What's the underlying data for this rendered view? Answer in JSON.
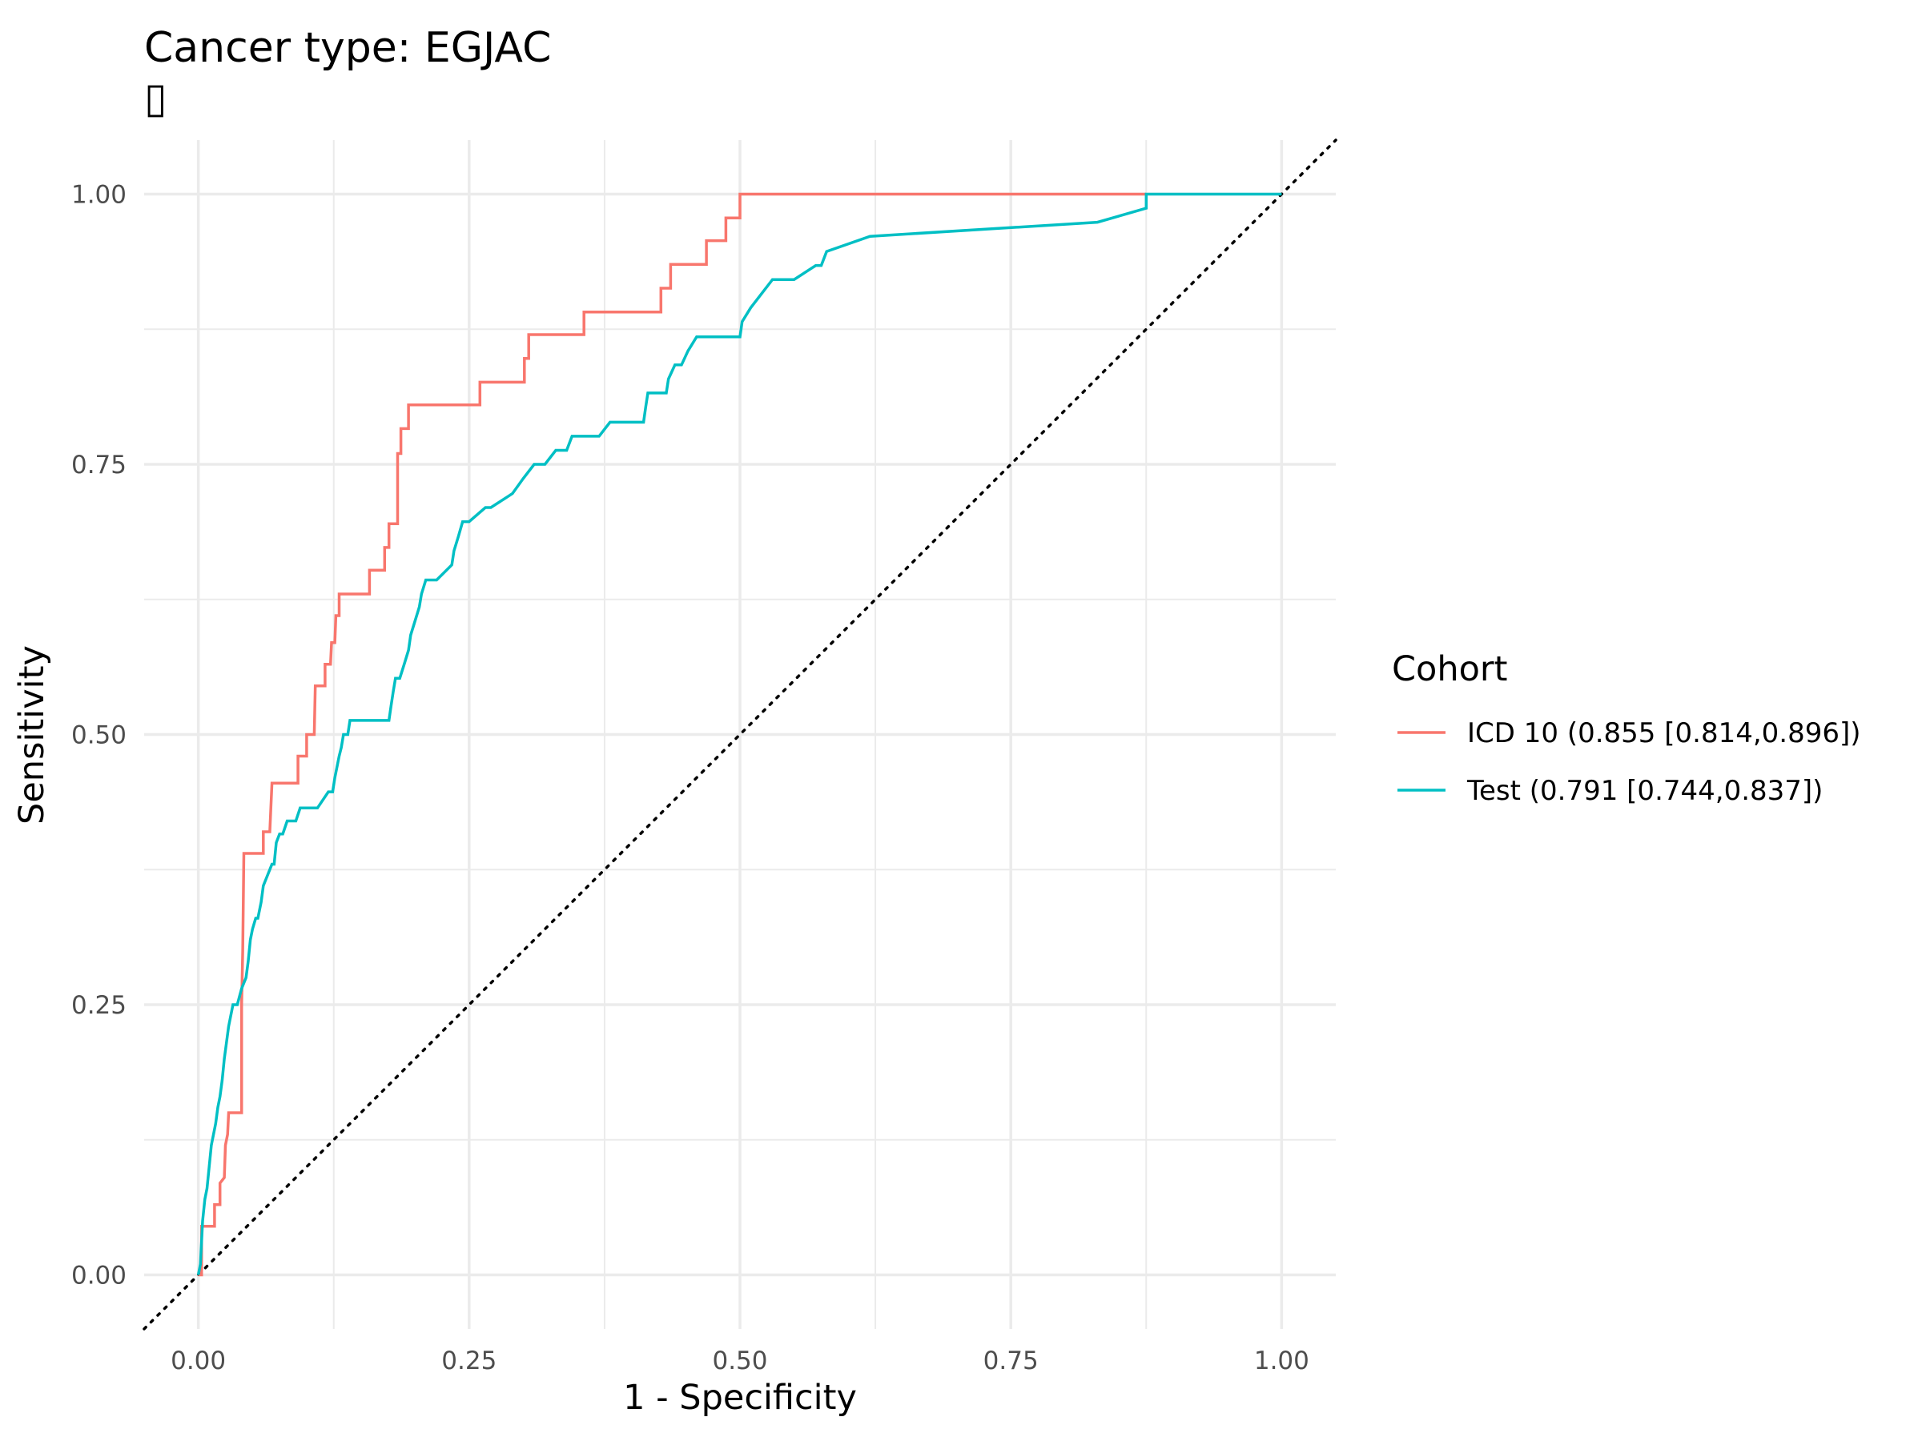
{
  "chart_data": {
    "type": "line",
    "title": "Cancer type: EGJAC",
    "subtitle": "▯",
    "xlabel": "1 - Specificity",
    "ylabel": "Sensitivity",
    "xlim": [
      -0.05,
      1.05
    ],
    "ylim": [
      -0.05,
      1.05
    ],
    "xticks": [
      0,
      0.25,
      0.5,
      0.75,
      1
    ],
    "yticks": [
      0,
      0.25,
      0.5,
      0.75,
      1
    ],
    "xtick_labels": [
      "0.00",
      "0.25",
      "0.50",
      "0.75",
      "1.00"
    ],
    "ytick_labels": [
      "0.00",
      "0.25",
      "0.50",
      "0.75",
      "1.00"
    ],
    "grid": true,
    "legend": {
      "title": "Cohort",
      "placement": "right"
    },
    "reference_line": {
      "style": "dotted",
      "from": [
        0,
        0
      ],
      "to": [
        1,
        1
      ],
      "color": "#000000"
    },
    "series": [
      {
        "name": "ICD 10 (0.855 [0.814,0.896])",
        "color": "#F8766D",
        "x": [
          0,
          0.003,
          0.003,
          0.015,
          0.015,
          0.02,
          0.02,
          0.024,
          0.025,
          0.027,
          0.028,
          0.031,
          0.032,
          0.04,
          0.04,
          0.041,
          0.042,
          0.06,
          0.06,
          0.066,
          0.068,
          0.092,
          0.092,
          0.1,
          0.1,
          0.107,
          0.108,
          0.117,
          0.117,
          0.122,
          0.123,
          0.126,
          0.127,
          0.13,
          0.13,
          0.158,
          0.158,
          0.172,
          0.172,
          0.176,
          0.176,
          0.184,
          0.184,
          0.187,
          0.187,
          0.194,
          0.194,
          0.208,
          0.208,
          0.26,
          0.26,
          0.301,
          0.301,
          0.305,
          0.305,
          0.356,
          0.356,
          0.427,
          0.427,
          0.436,
          0.436,
          0.469,
          0.469,
          0.487,
          0.487,
          0.493,
          0.493,
          0.5,
          0.5,
          0.875
        ],
        "y": [
          0,
          0,
          0.045,
          0.045,
          0.065,
          0.065,
          0.085,
          0.09,
          0.12,
          0.13,
          0.15,
          0.15,
          0.15,
          0.15,
          0.25,
          0.3,
          0.39,
          0.39,
          0.41,
          0.41,
          0.455,
          0.455,
          0.48,
          0.48,
          0.5,
          0.5,
          0.545,
          0.545,
          0.565,
          0.565,
          0.585,
          0.585,
          0.61,
          0.61,
          0.63,
          0.63,
          0.652,
          0.652,
          0.673,
          0.673,
          0.695,
          0.695,
          0.76,
          0.76,
          0.783,
          0.783,
          0.805,
          0.805,
          0.805,
          0.805,
          0.826,
          0.826,
          0.848,
          0.848,
          0.87,
          0.87,
          0.891,
          0.891,
          0.913,
          0.913,
          0.935,
          0.935,
          0.957,
          0.957,
          0.978,
          0.978,
          0.978,
          0.978,
          1.0,
          1.0
        ]
      },
      {
        "name": "Test (0.791 [0.744,0.837])",
        "color": "#00BFC4",
        "x": [
          0,
          0.002,
          0.004,
          0.005,
          0.006,
          0.008,
          0.01,
          0.012,
          0.014,
          0.016,
          0.018,
          0.02,
          0.022,
          0.024,
          0.026,
          0.028,
          0.03,
          0.032,
          0.034,
          0.036,
          0.04,
          0.044,
          0.046,
          0.048,
          0.05,
          0.053,
          0.055,
          0.058,
          0.06,
          0.064,
          0.068,
          0.07,
          0.072,
          0.075,
          0.078,
          0.082,
          0.085,
          0.09,
          0.094,
          0.096,
          0.1,
          0.104,
          0.11,
          0.12,
          0.124,
          0.126,
          0.13,
          0.132,
          0.134,
          0.138,
          0.14,
          0.15,
          0.165,
          0.176,
          0.178,
          0.18,
          0.182,
          0.186,
          0.19,
          0.194,
          0.196,
          0.2,
          0.204,
          0.206,
          0.21,
          0.215,
          0.22,
          0.234,
          0.236,
          0.24,
          0.244,
          0.25,
          0.265,
          0.27,
          0.29,
          0.3,
          0.31,
          0.32,
          0.33,
          0.34,
          0.345,
          0.37,
          0.38,
          0.411,
          0.413,
          0.415,
          0.432,
          0.434,
          0.44,
          0.446,
          0.452,
          0.46,
          0.5,
          0.502,
          0.51,
          0.52,
          0.53,
          0.55,
          0.57,
          0.575,
          0.58,
          0.62,
          0.83,
          0.83,
          0.875,
          0.875,
          1.0
        ],
        "y": [
          0,
          0.01,
          0.05,
          0.06,
          0.07,
          0.08,
          0.1,
          0.12,
          0.13,
          0.14,
          0.155,
          0.165,
          0.18,
          0.2,
          0.215,
          0.23,
          0.24,
          0.25,
          0.25,
          0.25,
          0.265,
          0.275,
          0.29,
          0.31,
          0.32,
          0.33,
          0.33,
          0.345,
          0.36,
          0.37,
          0.38,
          0.38,
          0.4,
          0.408,
          0.408,
          0.42,
          0.42,
          0.42,
          0.432,
          0.432,
          0.432,
          0.432,
          0.432,
          0.447,
          0.447,
          0.46,
          0.48,
          0.488,
          0.5,
          0.5,
          0.513,
          0.513,
          0.513,
          0.513,
          0.527,
          0.54,
          0.552,
          0.552,
          0.565,
          0.578,
          0.592,
          0.605,
          0.618,
          0.63,
          0.643,
          0.643,
          0.643,
          0.657,
          0.67,
          0.683,
          0.697,
          0.697,
          0.71,
          0.71,
          0.723,
          0.737,
          0.75,
          0.75,
          0.763,
          0.763,
          0.776,
          0.776,
          0.789,
          0.789,
          0.803,
          0.816,
          0.816,
          0.829,
          0.842,
          0.842,
          0.855,
          0.868,
          0.868,
          0.882,
          0.895,
          0.908,
          0.921,
          0.921,
          0.934,
          0.934,
          0.947,
          0.961,
          0.974,
          0.974,
          0.987,
          1.0,
          1.0
        ]
      }
    ]
  }
}
